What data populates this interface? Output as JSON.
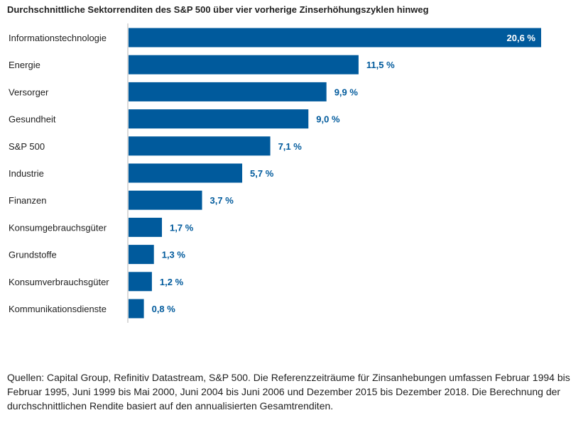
{
  "chart_data": {
    "type": "bar",
    "orientation": "horizontal",
    "title": "Durchschnittliche Sektorrenditen des S&P 500 über vier vorherige Zinserhöhungszyklen hinweg",
    "categories": [
      "Informationstechnologie",
      "Energie",
      "Versorger",
      "Gesundheit",
      "S&P 500",
      "Industrie",
      "Finanzen",
      "Konsumgebrauchsgüter",
      "Grundstoffe",
      "Konsumverbrauchsgüter",
      "Kommunikationsdienste"
    ],
    "values": [
      20.6,
      11.5,
      9.9,
      9.0,
      7.1,
      5.7,
      3.7,
      1.7,
      1.3,
      1.2,
      0.8
    ],
    "value_labels": [
      "20,6 %",
      "11,5 %",
      "9,9 %",
      "9,0 %",
      "7,1 %",
      "5,7 %",
      "3,7 %",
      "1,7 %",
      "1,3 %",
      "1,2 %",
      "0,8 %"
    ],
    "xlim": [
      0,
      20.6
    ],
    "grid": false,
    "legend": "none",
    "bar_color": "#005a9c",
    "label_color": "#005a9c",
    "inside_label_color": "#ffffff"
  },
  "source_note": "Quellen: Capital Group, Refinitiv Datastream, S&P 500. Die Referenzzeiträume für Zinsanhebungen umfassen Februar 1994 bis Februar 1995, Juni 1999 bis Mai 2000, Juni 2004 bis Juni 2006 und Dezember 2015 bis Dezember 2018. Die Berechnung der durchschnittlichen Rendite basiert auf den annualisierten Gesamtrenditen."
}
